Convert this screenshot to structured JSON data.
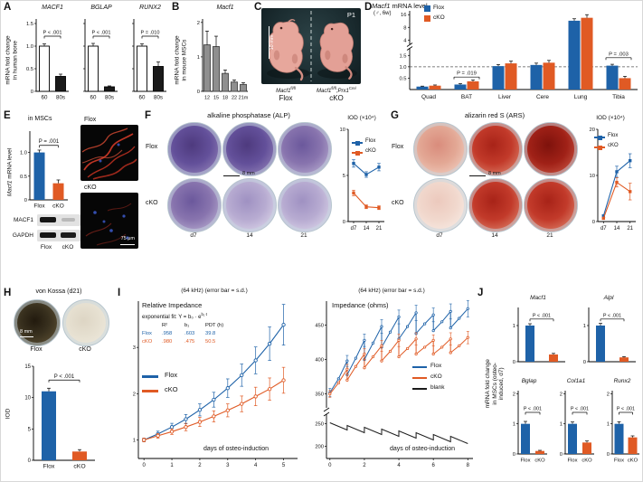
{
  "colors": {
    "flox_blue": "#1e62a8",
    "cko_orange": "#e05a24",
    "black_bar": "#1a1a1a",
    "gray_bar": "#8f8f8f",
    "blank_black": "#1a1a1a",
    "dashed": "#555555",
    "white_bar": "#ffffff"
  },
  "chart_data": [
    {
      "id": "A_MACF1",
      "type": "bar",
      "title": "MACF1",
      "p": "P < .001",
      "categories": [
        "60",
        "80s"
      ],
      "values": [
        1.0,
        0.33
      ],
      "errors": [
        0.05,
        0.05
      ],
      "ylim": [
        0,
        1.6
      ],
      "yticks": [
        0,
        0.5,
        1.0,
        1.5
      ],
      "ytick_labels": [
        "0",
        "0.5",
        "1.0",
        "1.5"
      ],
      "ylabel": "mRNA fold change in human bone"
    },
    {
      "id": "A_BGLAP",
      "type": "bar",
      "title": "BGLAP",
      "p": "P < .001",
      "categories": [
        "60",
        "80s"
      ],
      "values": [
        1.0,
        0.1
      ],
      "errors": [
        0.06,
        0.02
      ],
      "ylim": [
        0,
        1.6
      ],
      "yticks": [
        0,
        0.5,
        1.0,
        1.5
      ],
      "ytick_labels": [
        "0",
        "0.5",
        "1.0",
        "1.5"
      ]
    },
    {
      "id": "A_RUNX2",
      "type": "bar",
      "title": "RUNX2",
      "p": "P = .010",
      "categories": [
        "60",
        "80s"
      ],
      "values": [
        1.0,
        0.55
      ],
      "errors": [
        0.05,
        0.1
      ],
      "ylim": [
        0,
        1.6
      ],
      "yticks": [
        0,
        0.5,
        1.0,
        1.5
      ],
      "ytick_labels": [
        "0",
        "0.5",
        "1.0",
        "1.5"
      ]
    },
    {
      "id": "B_Macf1_mouse",
      "type": "bar",
      "title": "Macf1",
      "categories": [
        "12",
        "15",
        "18",
        "22",
        "21m"
      ],
      "values": [
        1.35,
        1.3,
        0.52,
        0.27,
        0.2
      ],
      "errors": [
        0.4,
        0.3,
        0.1,
        0.06,
        0.05
      ],
      "ylim": [
        0,
        2.1
      ],
      "yticks": [
        0,
        1,
        2
      ],
      "ytick_labels": [
        "0",
        "1",
        "2"
      ],
      "ylabel": "mRNA fold change in mouse MSCs"
    },
    {
      "id": "D_tissue_Macf1",
      "type": "bar",
      "title_gene": "Macf1",
      "title_rest": " mRNA level",
      "subtitle": "(♂, 6w)",
      "categories": [
        "Quad",
        "BAT",
        "Liver",
        "Cere",
        "Lung",
        "Tibia"
      ],
      "series": [
        {
          "name": "Flox",
          "values": [
            0.13,
            0.22,
            1.03,
            1.08,
            11.5,
            1.05
          ],
          "errors": [
            0.02,
            0.04,
            0.07,
            0.08,
            1.3,
            0.06
          ]
        },
        {
          "name": "cKO",
          "values": [
            0.17,
            0.36,
            1.15,
            1.18,
            13.5,
            0.5
          ],
          "errors": [
            0.03,
            0.06,
            0.1,
            0.1,
            2.5,
            0.08
          ]
        }
      ],
      "annotations": [
        {
          "text": "P = .019",
          "group": 1,
          "at": 0.55
        },
        {
          "text": "P = .003",
          "group": 5,
          "at": 1.4
        }
      ],
      "baseline": 1.0,
      "axis_break": true,
      "ylim_top": [
        3.5,
        17
      ],
      "ylim_bottom": [
        0,
        1.75
      ],
      "yticks_top": [
        4,
        8,
        16
      ],
      "yticks_bottom": [
        0.5,
        1.0,
        1.5
      ],
      "ybottom_labels": [
        "0.5",
        "1.0",
        "1.5"
      ]
    },
    {
      "id": "E_MSC_Macf1",
      "type": "bar",
      "context": "in MSCs",
      "ylabel_gene": "Macf1",
      "ylabel_rest": " mRNA level",
      "p": "P = .001",
      "categories": [
        "Flox",
        "cKO"
      ],
      "values": [
        1.0,
        0.35
      ],
      "errors": [
        0.05,
        0.07
      ],
      "ylim": [
        0,
        1.45
      ],
      "yticks": [
        0,
        0.5,
        1.0
      ],
      "ytick_labels": [
        "0",
        "0.5",
        "1.0"
      ]
    },
    {
      "id": "F_ALP_IOD",
      "type": "line",
      "ylabel": "IOD (×10⁴)",
      "x": [
        7,
        14,
        21
      ],
      "xtick_labels": [
        "d7",
        "14",
        "21"
      ],
      "series": [
        {
          "name": "Flox",
          "values": [
            6.3,
            5.1,
            5.9
          ],
          "errors": [
            0.4,
            0.3,
            0.4
          ]
        },
        {
          "name": "cKO",
          "values": [
            3.1,
            1.6,
            1.5
          ],
          "errors": [
            0.3,
            0.2,
            0.2
          ]
        }
      ],
      "ylim": [
        0,
        10
      ],
      "yticks": [
        0,
        5,
        10
      ],
      "ytick_labels": [
        "0",
        "5",
        "10"
      ]
    },
    {
      "id": "G_ARS_IOD",
      "type": "line",
      "ylabel": "IOD (×10⁴)",
      "x": [
        7,
        14,
        21
      ],
      "xtick_labels": [
        "d7",
        "14",
        "21"
      ],
      "series": [
        {
          "name": "Flox",
          "values": [
            1.2,
            10.8,
            13.2
          ],
          "errors": [
            0.3,
            1.2,
            1.5
          ]
        },
        {
          "name": "cKO",
          "values": [
            0.7,
            8.5,
            6.5
          ],
          "errors": [
            0.2,
            1.0,
            1.8
          ]
        }
      ],
      "ylim": [
        0,
        20
      ],
      "yticks": [
        0,
        10,
        20
      ],
      "ytick_labels": [
        "0",
        "10",
        "20"
      ]
    },
    {
      "id": "H_vonKossa_IOD",
      "type": "bar",
      "ylabel": "IOD",
      "p": "P < .001",
      "categories": [
        "Flox",
        "cKO"
      ],
      "values": [
        11.0,
        1.4
      ],
      "errors": [
        0.5,
        0.3
      ],
      "ylim": [
        0,
        15
      ],
      "yticks": [
        0,
        5,
        10,
        15
      ],
      "ytick_labels": [
        "0",
        "5",
        "10",
        "15"
      ]
    },
    {
      "id": "I_relative_impedance",
      "type": "line",
      "header": "(64 kHz)  (error bar = s.d.)",
      "title": "Relative Impedance",
      "xlabel": "days of osteo-induction",
      "ylim": [
        0.6,
        4.0
      ],
      "yticks": [
        1,
        2,
        3
      ],
      "ytick_labels": [
        "1",
        "2",
        "3"
      ],
      "xticks": [
        0,
        1,
        2,
        3,
        4,
        5
      ],
      "fit": {
        "label": "exponential fit: Y = b₀ · e",
        "exponent": "b₁·t",
        "headers": [
          "R²",
          "b₁",
          "PDT (h)"
        ],
        "rows": [
          {
            "name": "Flox",
            "values": [
              ".958",
              ".603",
              "39.8"
            ]
          },
          {
            "name": "cKO",
            "values": [
              ".980",
              ".475",
              "50.5"
            ]
          }
        ]
      },
      "series": [
        {
          "name": "Flox",
          "points": [
            [
              0,
              1.0,
              0.04
            ],
            [
              0.5,
              1.13,
              0.06
            ],
            [
              1,
              1.28,
              0.08
            ],
            [
              1.5,
              1.45,
              0.1
            ],
            [
              2,
              1.65,
              0.13
            ],
            [
              2.5,
              1.87,
              0.16
            ],
            [
              3,
              2.12,
              0.2
            ],
            [
              3.5,
              2.4,
              0.24
            ],
            [
              4,
              2.72,
              0.29
            ],
            [
              4.5,
              3.08,
              0.36
            ],
            [
              5,
              3.49,
              0.44
            ]
          ]
        },
        {
          "name": "cKO",
          "points": [
            [
              0,
              1.0,
              0.04
            ],
            [
              0.5,
              1.09,
              0.05
            ],
            [
              1,
              1.18,
              0.06
            ],
            [
              1.5,
              1.28,
              0.08
            ],
            [
              2,
              1.39,
              0.1
            ],
            [
              2.5,
              1.51,
              0.12
            ],
            [
              3,
              1.64,
              0.14
            ],
            [
              3.5,
              1.78,
              0.17
            ],
            [
              4,
              1.94,
              0.2
            ],
            [
              4.5,
              2.1,
              0.24
            ],
            [
              5,
              2.29,
              0.28
            ]
          ]
        }
      ]
    },
    {
      "id": "I_impedance_ohms",
      "type": "line",
      "header": "(64 kHz)  (error bar = s.d.)",
      "title": "Impedance (ohms)",
      "xlabel": "days of osteo-induction",
      "axis_break": true,
      "ylim_top": [
        335,
        485
      ],
      "ylim_bottom": [
        185,
        265
      ],
      "yticks_top": [
        350,
        400,
        450
      ],
      "yticks_bottom": [
        200,
        250
      ],
      "xticks": [
        0,
        2,
        4,
        6,
        8
      ],
      "series": [
        {
          "name": "Flox",
          "points": [
            [
              0,
              352,
              6
            ],
            [
              0.5,
              372
            ],
            [
              1,
              398,
              8
            ],
            [
              1,
              378
            ],
            [
              1.5,
              402
            ],
            [
              2,
              428,
              9
            ],
            [
              2,
              400
            ],
            [
              2.5,
              424
            ],
            [
              3,
              448,
              10
            ],
            [
              3,
              418
            ],
            [
              3.5,
              440
            ],
            [
              4,
              462,
              10
            ],
            [
              4,
              430
            ],
            [
              4.5,
              448
            ],
            [
              5,
              468,
              11
            ],
            [
              5,
              438
            ],
            [
              5.5,
              452
            ],
            [
              6,
              465,
              10
            ],
            [
              6,
              442
            ],
            [
              6.5,
              455
            ],
            [
              7,
              470,
              11
            ],
            [
              7,
              446
            ],
            [
              7.5,
              460
            ],
            [
              8,
              474,
              12
            ]
          ]
        },
        {
          "name": "cKO",
          "points": [
            [
              0,
              350,
              5
            ],
            [
              0.5,
              366
            ],
            [
              1,
              386,
              7
            ],
            [
              1,
              370
            ],
            [
              1.5,
              390
            ],
            [
              2,
              408,
              8
            ],
            [
              2,
              388
            ],
            [
              2.5,
              404
            ],
            [
              3,
              420,
              8
            ],
            [
              3,
              398
            ],
            [
              3.5,
              412
            ],
            [
              4,
              428,
              9
            ],
            [
              4,
              404
            ],
            [
              4.5,
              416
            ],
            [
              5,
              430,
              9
            ],
            [
              5,
              408
            ],
            [
              5.5,
              418
            ],
            [
              6,
              428,
              8
            ],
            [
              6,
              408
            ],
            [
              6.5,
              418
            ],
            [
              7,
              430,
              9
            ],
            [
              7,
              410
            ],
            [
              7.5,
              420
            ],
            [
              8,
              432,
              9
            ]
          ]
        },
        {
          "name": "blank",
          "points": [
            [
              0,
              252
            ],
            [
              1,
              236
            ],
            [
              1,
              246
            ],
            [
              2,
              230
            ],
            [
              2,
              242
            ],
            [
              3,
              226
            ],
            [
              3,
              238
            ],
            [
              4,
              222
            ],
            [
              4,
              234
            ],
            [
              5,
              218
            ],
            [
              5,
              230
            ],
            [
              6,
              214
            ],
            [
              6,
              226
            ],
            [
              7,
              210
            ],
            [
              7,
              222
            ],
            [
              8,
              206
            ]
          ]
        }
      ]
    },
    {
      "id": "J_Macf1",
      "type": "bar",
      "title": "Macf1",
      "p": "P < .001",
      "categories": [
        "Flox",
        "cKO"
      ],
      "values": [
        1.0,
        0.2
      ],
      "errors": [
        0.05,
        0.03
      ],
      "ylim": [
        0,
        1.5
      ],
      "yticks": [
        0,
        1
      ],
      "ytick_labels": [
        "0",
        "1"
      ]
    },
    {
      "id": "J_Alpl",
      "type": "bar",
      "title": "Alpl",
      "p": "P < .001",
      "categories": [
        "Flox",
        "cKO"
      ],
      "values": [
        1.0,
        0.12
      ],
      "errors": [
        0.06,
        0.02
      ],
      "ylim": [
        0,
        1.5
      ],
      "yticks": [
        0,
        1
      ],
      "ytick_labels": [
        "0",
        "1"
      ]
    },
    {
      "id": "J_Bglap",
      "type": "bar",
      "title": "Bglap",
      "p": "P < .001",
      "categories": [
        "Flox",
        "cKO"
      ],
      "values": [
        1.0,
        0.1
      ],
      "errors": [
        0.08,
        0.02
      ],
      "ylim": [
        0,
        2.1
      ],
      "yticks": [
        0,
        1,
        2
      ],
      "ytick_labels": [
        "0",
        "1",
        "2"
      ]
    },
    {
      "id": "J_Col1a1",
      "type": "bar",
      "title": "Col1a1",
      "p": "P < .001",
      "categories": [
        "Flox",
        "cKO"
      ],
      "values": [
        1.0,
        0.38
      ],
      "errors": [
        0.06,
        0.05
      ],
      "ylim": [
        0,
        2.1
      ],
      "yticks": [
        0,
        1,
        2
      ],
      "ytick_labels": [
        "0",
        "1",
        "2"
      ]
    },
    {
      "id": "J_Runx2",
      "type": "bar",
      "title": "Runx2",
      "p": "P < .001",
      "categories": [
        "Flox",
        "cKO"
      ],
      "values": [
        1.0,
        0.55
      ],
      "errors": [
        0.07,
        0.05
      ],
      "ylim": [
        0,
        2.1
      ],
      "yticks": [
        0,
        1,
        2
      ],
      "ytick_labels": [
        "0",
        "1",
        "2"
      ]
    }
  ],
  "panels": {
    "A": {
      "letter": "A",
      "ylabel": [
        "mRNA fold change",
        "in human bone"
      ]
    },
    "B": {
      "letter": "B",
      "ylabel": [
        "mRNA fold change",
        "in mouse MSCs"
      ]
    },
    "C": {
      "letter": "C",
      "tag": "P1",
      "scale": "10 mm",
      "geno1_base": "Macf1",
      "geno1_sup": "fl/fl",
      "geno2_base": "Macf1",
      "geno2_sup": "fl/fl",
      "geno2_base2": ";Prx1",
      "geno2_sup2": "Cre/",
      "label1": "Flox",
      "label2": "cKO"
    },
    "D": {
      "letter": "D"
    },
    "E": {
      "letter": "E",
      "blot_rows": [
        "MACF1",
        "GAPDH"
      ],
      "blot_cols": [
        "Flox",
        "cKO"
      ],
      "img_labels": [
        "Flox",
        "cKO"
      ],
      "img_scale": "75 μm"
    },
    "F": {
      "letter": "F",
      "title": "alkaline phosphatase (ALP)",
      "rows": [
        "Flox",
        "cKO"
      ],
      "cols": [
        "d7",
        "14",
        "21"
      ],
      "scale": "8 mm",
      "well_shades": [
        [
          "alp-3",
          "alp-3",
          "alp-2"
        ],
        [
          "alp-2",
          "alp-1",
          "alp-1"
        ]
      ]
    },
    "G": {
      "letter": "G",
      "title": "alizarin red S (ARS)",
      "rows": [
        "Flox",
        "cKO"
      ],
      "cols": [
        "d7",
        "14",
        "21"
      ],
      "scale": "8 mm",
      "well_shades": [
        [
          "ars-1",
          "ars-2",
          "ars-3"
        ],
        [
          "ars-0",
          "ars-2",
          "ars-2"
        ]
      ]
    },
    "H": {
      "letter": "H",
      "title": "von Kossa (d21)",
      "labels": [
        "Flox",
        "cKO"
      ],
      "scale": "8 mm",
      "well_shades": [
        "vk-dark",
        "vk-light"
      ]
    },
    "I": {
      "letter": "I"
    },
    "J": {
      "letter": "J",
      "ylabel": [
        "mRNA fold change",
        "in MSCs (osteo-",
        "induced, d7)"
      ]
    }
  }
}
